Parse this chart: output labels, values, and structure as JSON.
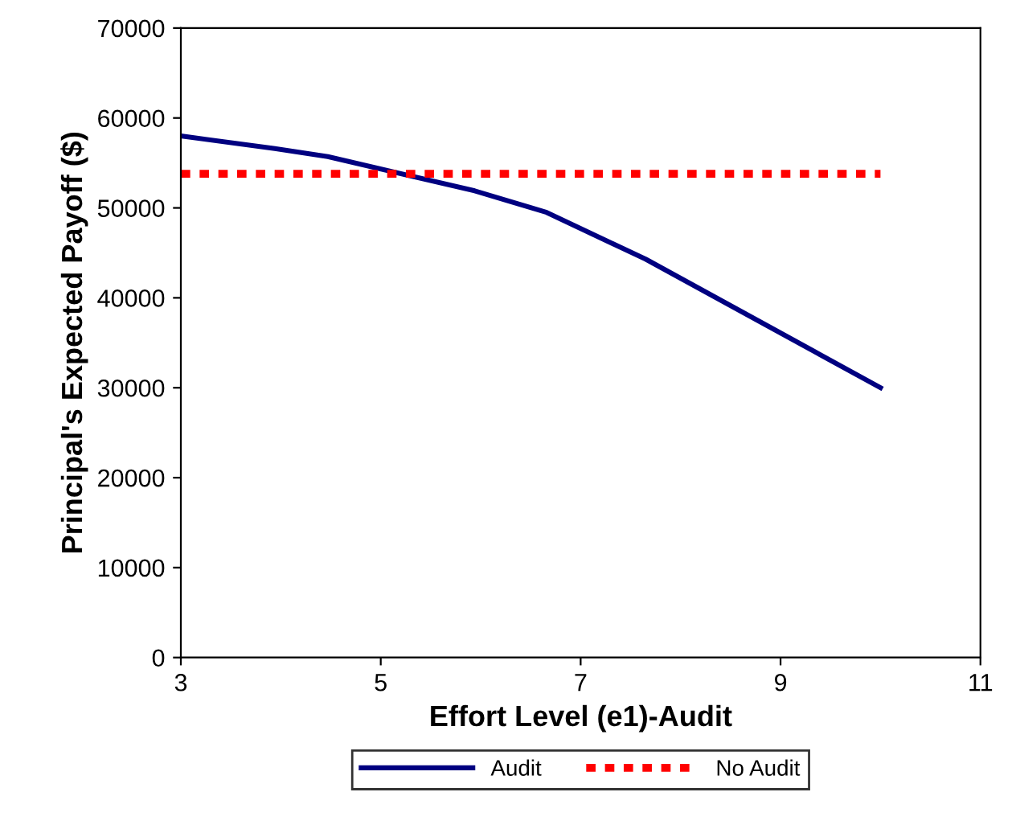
{
  "chart_data": {
    "type": "line",
    "xlabel": "Effort Level (e1)-Audit",
    "ylabel": "Principal's Expected Payoff ($)",
    "xlim": [
      3,
      11
    ],
    "xticks": [
      3,
      5,
      7,
      9,
      11
    ],
    "ylim": [
      0,
      70000
    ],
    "yticks": [
      0,
      10000,
      20000,
      30000,
      40000,
      50000,
      60000,
      70000
    ],
    "grid": false,
    "legend": "bottom",
    "marker": "none",
    "series": [
      {
        "name": "Audit",
        "color": "#000080",
        "line_style": "solid",
        "x": [
          3,
          3.94,
          4.47,
          5.94,
          6.66,
          7.65,
          10
        ],
        "values": [
          58000,
          56600,
          55700,
          51900,
          49500,
          44300,
          30000
        ]
      },
      {
        "name": "No Audit",
        "color": "#ff0000",
        "line_style": "dotted",
        "x": [
          3,
          10
        ],
        "values": [
          53800,
          53800
        ]
      }
    ]
  }
}
